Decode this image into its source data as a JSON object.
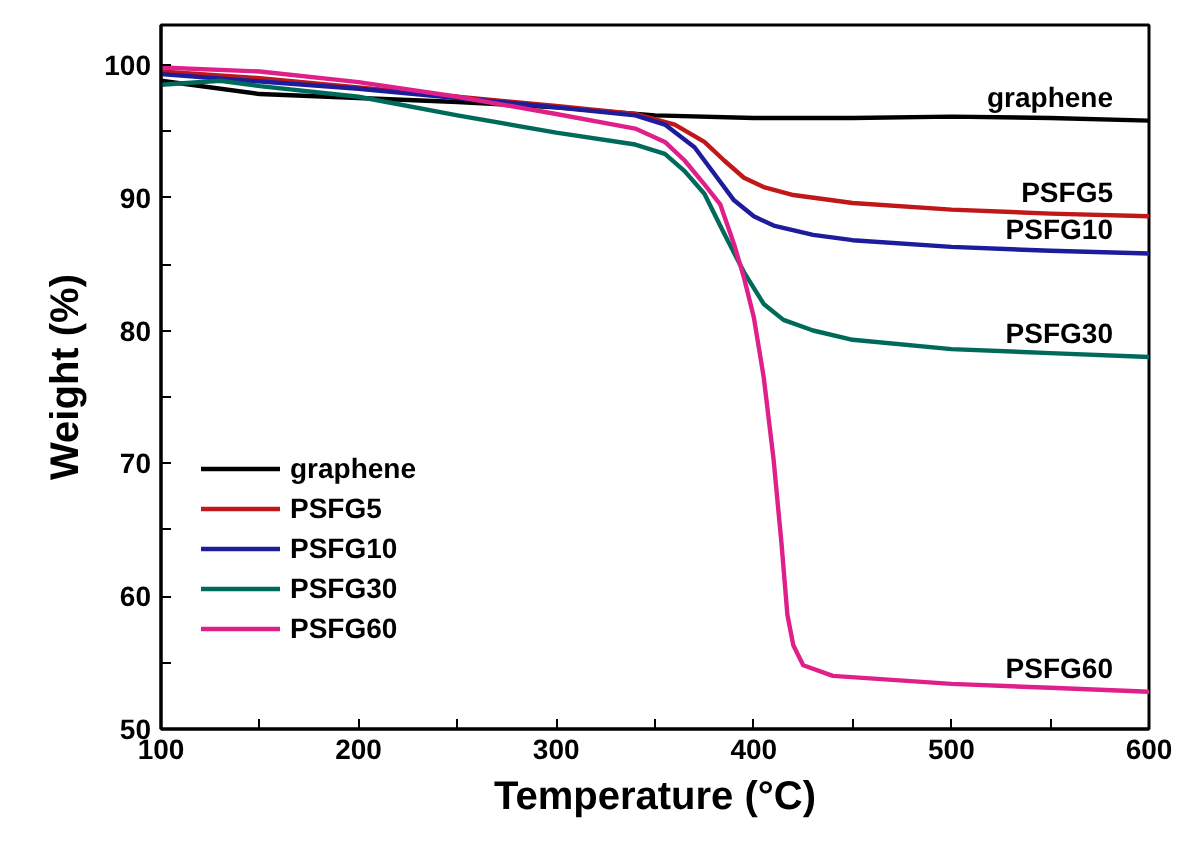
{
  "chart_data": {
    "type": "line",
    "xlabel": "Temperature (°C)",
    "ylabel": "Weight (%)",
    "xlim": [
      100,
      600
    ],
    "ylim": [
      50,
      103
    ],
    "xticks": [
      100,
      {
        "value": 150,
        "label": null
      },
      200,
      {
        "value": 250,
        "label": null
      },
      300,
      {
        "value": 350,
        "label": null
      },
      400,
      {
        "value": 450,
        "label": null
      },
      500,
      {
        "value": 550,
        "label": null
      },
      600
    ],
    "yticks": [
      50,
      {
        "value": 55,
        "label": null
      },
      60,
      {
        "value": 65,
        "label": null
      },
      70,
      {
        "value": 75,
        "label": null
      },
      80,
      {
        "value": 85,
        "label": null
      },
      90,
      {
        "value": 95,
        "label": null
      },
      100
    ],
    "grid": false,
    "legend": "left",
    "line_style": "solid",
    "series": [
      {
        "name": "graphene",
        "color": "#000000",
        "x": [
          100,
          150,
          200,
          250,
          300,
          350,
          400,
          450,
          500,
          550,
          600
        ],
        "values": [
          98.8,
          97.8,
          97.5,
          97.2,
          96.8,
          96.2,
          96.0,
          96.0,
          96.1,
          96.0,
          95.8
        ]
      },
      {
        "name": "PSFG5",
        "color": "#c01818",
        "x": [
          100,
          150,
          200,
          250,
          300,
          340,
          360,
          375,
          385,
          395,
          405,
          420,
          450,
          500,
          550,
          600
        ],
        "values": [
          99.5,
          99.0,
          98.3,
          97.6,
          96.9,
          96.3,
          95.5,
          94.2,
          92.8,
          91.5,
          90.8,
          90.2,
          89.6,
          89.1,
          88.8,
          88.6
        ]
      },
      {
        "name": "PSFG10",
        "color": "#1c1c9c",
        "x": [
          100,
          200,
          300,
          340,
          355,
          370,
          380,
          390,
          400,
          410,
          430,
          450,
          500,
          550,
          600
        ],
        "values": [
          99.3,
          98.2,
          96.8,
          96.2,
          95.5,
          93.8,
          91.8,
          89.8,
          88.6,
          87.9,
          87.2,
          86.8,
          86.3,
          86.0,
          85.8
        ]
      },
      {
        "name": "PSFG30",
        "color": "#006a5a",
        "x": [
          100,
          130,
          150,
          200,
          250,
          300,
          340,
          355,
          365,
          375,
          385,
          395,
          405,
          415,
          430,
          450,
          500,
          550,
          600
        ],
        "values": [
          98.5,
          98.8,
          98.4,
          97.6,
          96.2,
          94.9,
          94.0,
          93.3,
          92.0,
          90.3,
          87.3,
          84.4,
          82.0,
          80.8,
          80.0,
          79.3,
          78.6,
          78.3,
          78.0
        ]
      },
      {
        "name": "PSFG60",
        "color": "#e0208a",
        "x": [
          100,
          150,
          200,
          250,
          300,
          340,
          355,
          365,
          375,
          383,
          390,
          395,
          400,
          405,
          410,
          414,
          417,
          420,
          425,
          440,
          500,
          550,
          600
        ],
        "values": [
          99.8,
          99.5,
          98.7,
          97.6,
          96.3,
          95.2,
          94.2,
          92.8,
          91.0,
          89.5,
          86.5,
          84.0,
          81.0,
          76.5,
          70.3,
          64.0,
          58.6,
          56.3,
          54.8,
          54.0,
          53.4,
          53.1,
          52.8
        ]
      }
    ],
    "annotations": [
      "graphene",
      "PSFG5",
      "PSFG10",
      "PSFG30",
      "PSFG60"
    ]
  }
}
